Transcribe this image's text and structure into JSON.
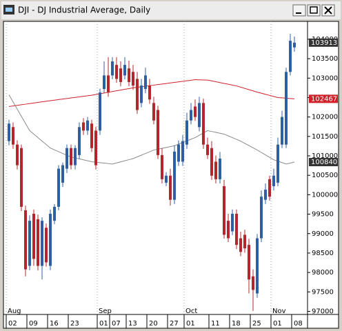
{
  "chart_data": {
    "type": "candlestick",
    "title": "DJI - DJ Industrial Average, Daily",
    "categories": [
      "02",
      null,
      null,
      null,
      null,
      "09",
      null,
      null,
      null,
      null,
      "16",
      null,
      null,
      null,
      null,
      "23",
      null,
      null,
      null,
      null,
      null,
      null,
      "01",
      null,
      null,
      "07",
      null,
      null,
      null,
      "13",
      null,
      null,
      null,
      null,
      "20",
      null,
      null,
      null,
      null,
      "27",
      null,
      null,
      null,
      "01",
      null,
      null,
      null,
      null,
      null,
      "11",
      null,
      null,
      null,
      null,
      "18",
      null,
      null,
      null,
      null,
      "25",
      null,
      null,
      null,
      null,
      "01",
      null,
      null,
      null,
      null,
      "08"
    ],
    "months": [
      "Aug",
      null,
      null,
      null,
      null,
      null,
      null,
      null,
      null,
      null,
      null,
      null,
      null,
      null,
      null,
      null,
      null,
      null,
      null,
      null,
      null,
      null,
      "Sep",
      null,
      null,
      null,
      null,
      null,
      null,
      null,
      null,
      null,
      null,
      null,
      null,
      null,
      null,
      null,
      null,
      null,
      null,
      null,
      null,
      "Oct",
      null,
      null,
      null,
      null,
      null,
      null,
      null,
      null,
      null,
      null,
      null,
      null,
      null,
      null,
      null,
      null,
      null,
      null,
      null,
      null,
      "Nov",
      null,
      null,
      null,
      null,
      null
    ],
    "open": [
      101380,
      101740,
      101290,
      101200,
      99600,
      98170,
      99510,
      99370,
      98170,
      99150,
      98170,
      99330,
      99690,
      100310,
      100670,
      101200,
      100760,
      101020,
      101860,
      101650,
      101830,
      101650,
      101650,
      102720,
      103070,
      103070,
      103340,
      103250,
      103070,
      103250,
      103160,
      102980,
      102360,
      102720,
      102810,
      102360,
      102180,
      101020,
      100310,
      100490,
      99870,
      100850,
      100850,
      101290,
      101910,
      102270,
      101740,
      102360,
      101290,
      101200,
      100850,
      100400,
      100220,
      99330,
      99060,
      99510,
      98880,
      98970,
      98710,
      97900,
      97460,
      98880,
      99870,
      100400,
      100220,
      100310,
      101290,
      101290,
      103160,
      103790
    ],
    "high": [
      101930,
      101860,
      101400,
      101290,
      99720,
      99470,
      99620,
      99490,
      99420,
      99260,
      99620,
      99760,
      100760,
      100830,
      101290,
      101290,
      101270,
      101860,
      101970,
      102000,
      101930,
      101750,
      102730,
      103430,
      103540,
      103540,
      103540,
      103430,
      103540,
      103450,
      103340,
      103160,
      102980,
      103270,
      102980,
      102520,
      102290,
      101200,
      100580,
      100670,
      101270,
      101400,
      101540,
      102110,
      102360,
      102450,
      102520,
      102470,
      101470,
      101380,
      101010,
      101100,
      100380,
      99510,
      99620,
      99620,
      99050,
      99100,
      98870,
      98080,
      98990,
      100110,
      100290,
      100490,
      100670,
      101470,
      102160,
      103270,
      104140,
      104070
    ],
    "low": [
      101270,
      101180,
      100650,
      99580,
      97900,
      98060,
      98170,
      98050,
      97820,
      98150,
      98060,
      99240,
      99600,
      100200,
      100560,
      100650,
      100650,
      100920,
      101540,
      101540,
      101100,
      100650,
      101540,
      102610,
      102520,
      102970,
      102880,
      102790,
      102970,
      102790,
      102700,
      102080,
      102250,
      102610,
      102340,
      101810,
      100920,
      100290,
      100220,
      99720,
      99760,
      100740,
      100740,
      101180,
      101810,
      101900,
      101630,
      101180,
      100920,
      100380,
      100290,
      100290,
      98870,
      98780,
      98960,
      98600,
      98420,
      98510,
      97460,
      97010,
      97350,
      98780,
      99760,
      99850,
      100110,
      100220,
      101200,
      101200,
      103070,
      103680
    ],
    "close": [
      101830,
      101290,
      100760,
      99690,
      98080,
      99330,
      98350,
      98170,
      99330,
      98260,
      99510,
      99690,
      100670,
      100760,
      101200,
      100760,
      101200,
      101740,
      101650,
      101910,
      101200,
      100760,
      102630,
      103070,
      102630,
      103430,
      102980,
      102900,
      103340,
      102900,
      102810,
      102180,
      102810,
      103070,
      102450,
      101910,
      101020,
      100400,
      100490,
      99870,
      101110,
      101290,
      101380,
      101910,
      102180,
      102000,
      102360,
      101290,
      101020,
      100490,
      100400,
      100930,
      98970,
      98880,
      99510,
      98710,
      98530,
      98620,
      97820,
      97550,
      98880,
      99950,
      100130,
      99950,
      100490,
      101290,
      102000,
      103160,
      103960,
      103913
    ],
    "up_color": "#2e5fa3",
    "down_color": "#b3262b",
    "overlays": [
      {
        "color": "#d0202a",
        "values": [
          102270,
          102285,
          102300,
          102315,
          102330,
          102345,
          102360,
          102375,
          102390,
          102405,
          102420,
          102434,
          102448,
          102462,
          102476,
          102490,
          102504,
          102518,
          102532,
          102546,
          102560,
          102579,
          102598,
          102617,
          102636,
          102655,
          102674,
          102693,
          102712,
          102731,
          102750,
          102764,
          102778,
          102792,
          102806,
          102820,
          102834,
          102848,
          102862,
          102876,
          102890,
          102904,
          102918,
          102932,
          102946,
          102960,
          102957,
          102953,
          102950,
          102929,
          102907,
          102886,
          102864,
          102843,
          102821,
          102800,
          102768,
          102736,
          102704,
          102672,
          102640,
          102612,
          102584,
          102556,
          102528,
          102500,
          102492,
          102484,
          102475,
          102467
        ]
      },
      {
        "color": "#8a8a8a",
        "values": [
          102570,
          102386,
          102202,
          102018,
          101834,
          101650,
          101560,
          101470,
          101380,
          101290,
          101200,
          101154,
          101108,
          101062,
          101016,
          100970,
          100946,
          100922,
          100898,
          100874,
          100850,
          100838,
          100826,
          100814,
          100802,
          100790,
          100818,
          100846,
          100874,
          100902,
          100930,
          100974,
          101018,
          101062,
          101106,
          101150,
          101172,
          101194,
          101216,
          101238,
          101260,
          101302,
          101344,
          101386,
          101428,
          101470,
          101530,
          101590,
          101650,
          101627,
          101605,
          101582,
          101560,
          101515,
          101470,
          101425,
          101380,
          101322,
          101265,
          101207,
          101150,
          101087,
          101025,
          100962,
          100900,
          100863,
          100827,
          100790,
          100815,
          100840
        ]
      }
    ],
    "ylim": [
      96920,
      104460
    ],
    "yticks": [
      97000,
      97500,
      98000,
      98500,
      99000,
      99500,
      100000,
      100500,
      101000,
      101500,
      102000,
      102500,
      103000,
      103500,
      104000
    ]
  }
}
